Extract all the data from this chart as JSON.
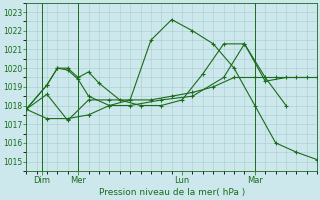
{
  "title": "",
  "xlabel": "Pression niveau de la mer( hPa )",
  "background_color": "#cce8ec",
  "grid_color": "#aaccd0",
  "line_color": "#1a6b1a",
  "ylim": [
    1014.5,
    1023.5
  ],
  "yticks": [
    1015,
    1016,
    1017,
    1018,
    1019,
    1020,
    1021,
    1022,
    1023
  ],
  "xlim": [
    0,
    28
  ],
  "series": [
    {
      "x": [
        0,
        2,
        4,
        6,
        8,
        10,
        12,
        14,
        16,
        18,
        20,
        22,
        24,
        26,
        28
      ],
      "y": [
        1017.8,
        1018.6,
        1017.2,
        1018.3,
        1018.3,
        1018.3,
        1021.5,
        1022.6,
        1022.0,
        1021.3,
        1020.0,
        1018.0,
        1016.0,
        1015.5,
        1015.1
      ]
    },
    {
      "x": [
        0,
        2,
        3,
        4,
        5,
        6,
        7,
        9,
        11,
        13,
        15,
        17,
        19,
        21,
        23,
        25,
        27
      ],
      "y": [
        1017.8,
        1019.1,
        1020.0,
        1020.0,
        1019.5,
        1019.8,
        1019.2,
        1018.3,
        1018.0,
        1018.0,
        1018.3,
        1019.7,
        1021.3,
        1021.3,
        1019.3,
        1019.5,
        1019.5
      ]
    },
    {
      "x": [
        0,
        2,
        3,
        4,
        5,
        6,
        8,
        10,
        13,
        16,
        19,
        21,
        23,
        25
      ],
      "y": [
        1017.8,
        1019.1,
        1020.0,
        1019.9,
        1019.4,
        1018.5,
        1018.0,
        1018.0,
        1018.3,
        1018.5,
        1019.5,
        1021.3,
        1019.5,
        1018.0
      ]
    },
    {
      "x": [
        0,
        2,
        4,
        6,
        8,
        10,
        12,
        14,
        16,
        18,
        20,
        22,
        24,
        26,
        28
      ],
      "y": [
        1017.8,
        1017.3,
        1017.3,
        1017.5,
        1018.0,
        1018.3,
        1018.3,
        1018.5,
        1018.7,
        1019.0,
        1019.5,
        1019.5,
        1019.5,
        1019.5,
        1019.5
      ]
    }
  ],
  "xtick_positions": [
    1.5,
    5,
    15,
    22
  ],
  "xtick_labels": [
    "Dim",
    "Mer",
    "Lun",
    "Mar"
  ],
  "vlines_x": [
    1.5,
    5,
    22
  ],
  "figsize": [
    3.2,
    2.0
  ],
  "dpi": 100
}
